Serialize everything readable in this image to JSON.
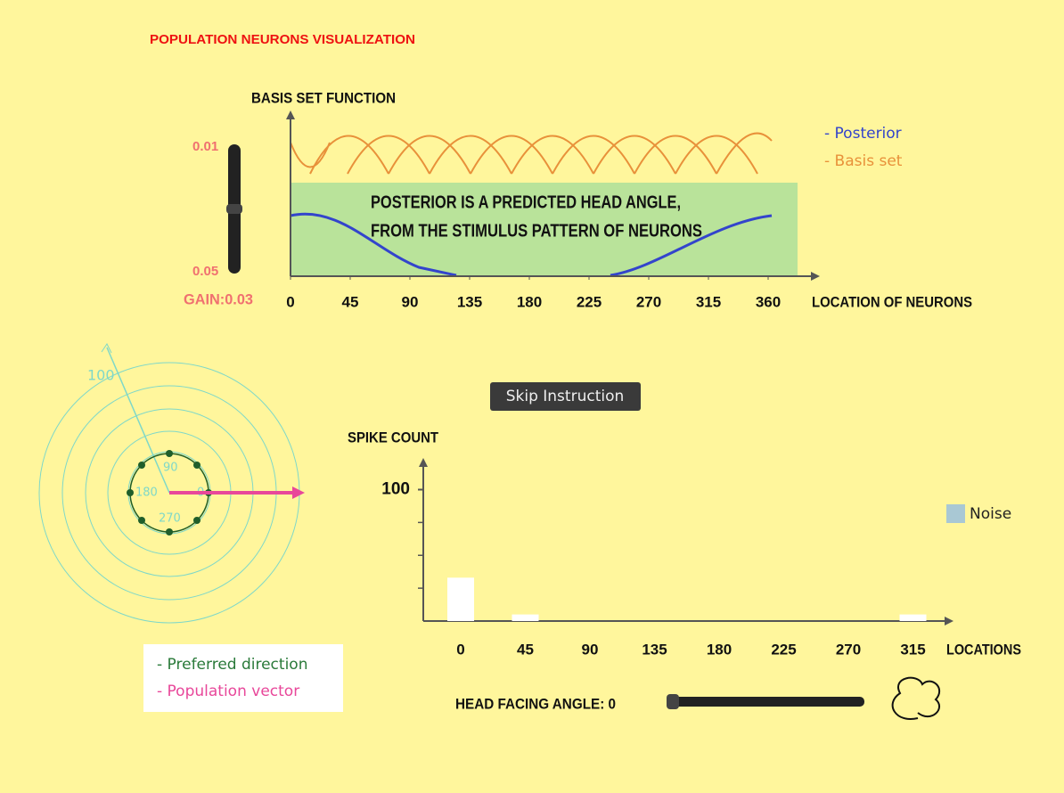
{
  "title": "POPULATION NEURONS VISUALIZATION",
  "basis_chart": {
    "type": "line",
    "title": "BASIS SET FUNCTION",
    "x_label": "LOCATION OF NEURONS",
    "xlim": [
      0,
      360
    ],
    "xticks": [
      0,
      45,
      90,
      135,
      180,
      225,
      270,
      315,
      360
    ],
    "legend": [
      {
        "name": "- Posterior",
        "color": "#3344cc"
      },
      {
        "name": "- Basis set",
        "color": "#e8913a"
      }
    ],
    "annotation": [
      "POSTERIOR IS A PREDICTED HEAD ANGLE,",
      "FROM THE STIMULUS PATTERN OF NEURONS"
    ]
  },
  "gain_slider": {
    "max_label": "0.01",
    "min_label": "0.05",
    "label": "GAIN:0.03"
  },
  "polar": {
    "radius_label": "100",
    "angle_labels": [
      "90",
      "180",
      "0",
      "270"
    ],
    "legend": [
      "- Preferred direction",
      "- Population vector"
    ]
  },
  "button": "Skip Instruction",
  "spike_chart": {
    "type": "bar",
    "y_label": "SPIKE COUNT",
    "x_label": "LOCATIONS",
    "categories": [
      "0",
      "45",
      "90",
      "135",
      "180",
      "225",
      "270",
      "315"
    ],
    "values": [
      33,
      5,
      0,
      0,
      0,
      0,
      0,
      5
    ],
    "color": "#ffffff",
    "ylim": [
      0,
      120
    ],
    "yticks": [
      100
    ],
    "yminor": [
      25,
      50,
      75
    ],
    "legend": "Noise",
    "legend_color": "#a9c8d4"
  },
  "head_angle_label": "HEAD FACING ANGLE: 0"
}
